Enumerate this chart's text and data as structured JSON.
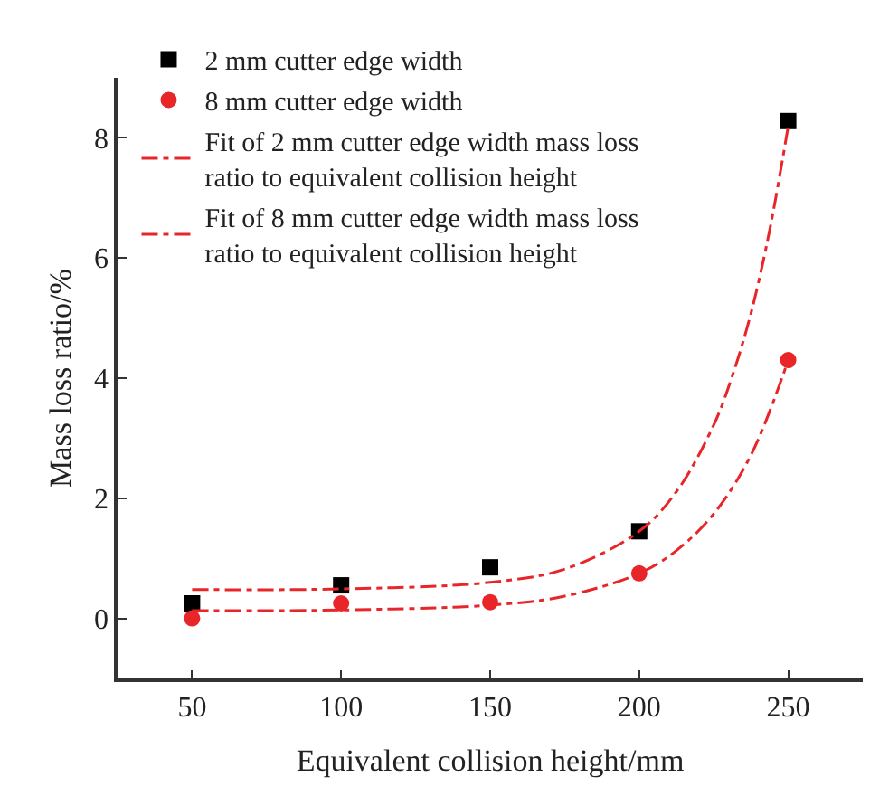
{
  "chart_data": {
    "type": "scatter",
    "xlabel": "Equivalent collision height/mm",
    "ylabel": "Mass loss ratio/%",
    "x": [
      50,
      100,
      150,
      200,
      250
    ],
    "series": [
      {
        "name": "2 mm cutter edge width",
        "color": "#000000",
        "marker": "square",
        "values": [
          0.25,
          0.55,
          0.85,
          1.45,
          8.28
        ]
      },
      {
        "name": "8 mm cutter edge width",
        "color": "#e8262a",
        "marker": "circle",
        "values": [
          0.0,
          0.25,
          0.27,
          0.75,
          4.3
        ]
      },
      {
        "name": "Fit of 2 mm cutter edge width mass loss ratio to equivalent collision height",
        "type": "line",
        "color": "#e8262a",
        "marker": "none",
        "line_style": "dashdot",
        "x": [
          50,
          100,
          150,
          175,
          200,
          212.5,
          225,
          231.25,
          237.5,
          243.75,
          250
        ],
        "values": [
          0.48,
          0.49,
          0.6,
          0.82,
          1.45,
          2.11,
          3.22,
          4.04,
          5.08,
          6.46,
          8.2
        ]
      },
      {
        "name": "Fit of 8 mm cutter edge width mass loss ratio to equivalent collision height",
        "type": "line",
        "color": "#e8262a",
        "marker": "none",
        "line_style": "dashdot",
        "x": [
          50,
          100,
          150,
          175,
          200,
          212.5,
          225,
          237.5,
          250
        ],
        "values": [
          0.13,
          0.14,
          0.22,
          0.37,
          0.75,
          1.13,
          1.74,
          2.72,
          4.3
        ]
      }
    ],
    "xlim": [
      25,
      275
    ],
    "xticks": [
      50,
      100,
      150,
      200,
      250
    ],
    "ylim": [
      -1,
      9
    ],
    "yticks": [
      0,
      2,
      4,
      6,
      8
    ],
    "legend": "top left"
  }
}
